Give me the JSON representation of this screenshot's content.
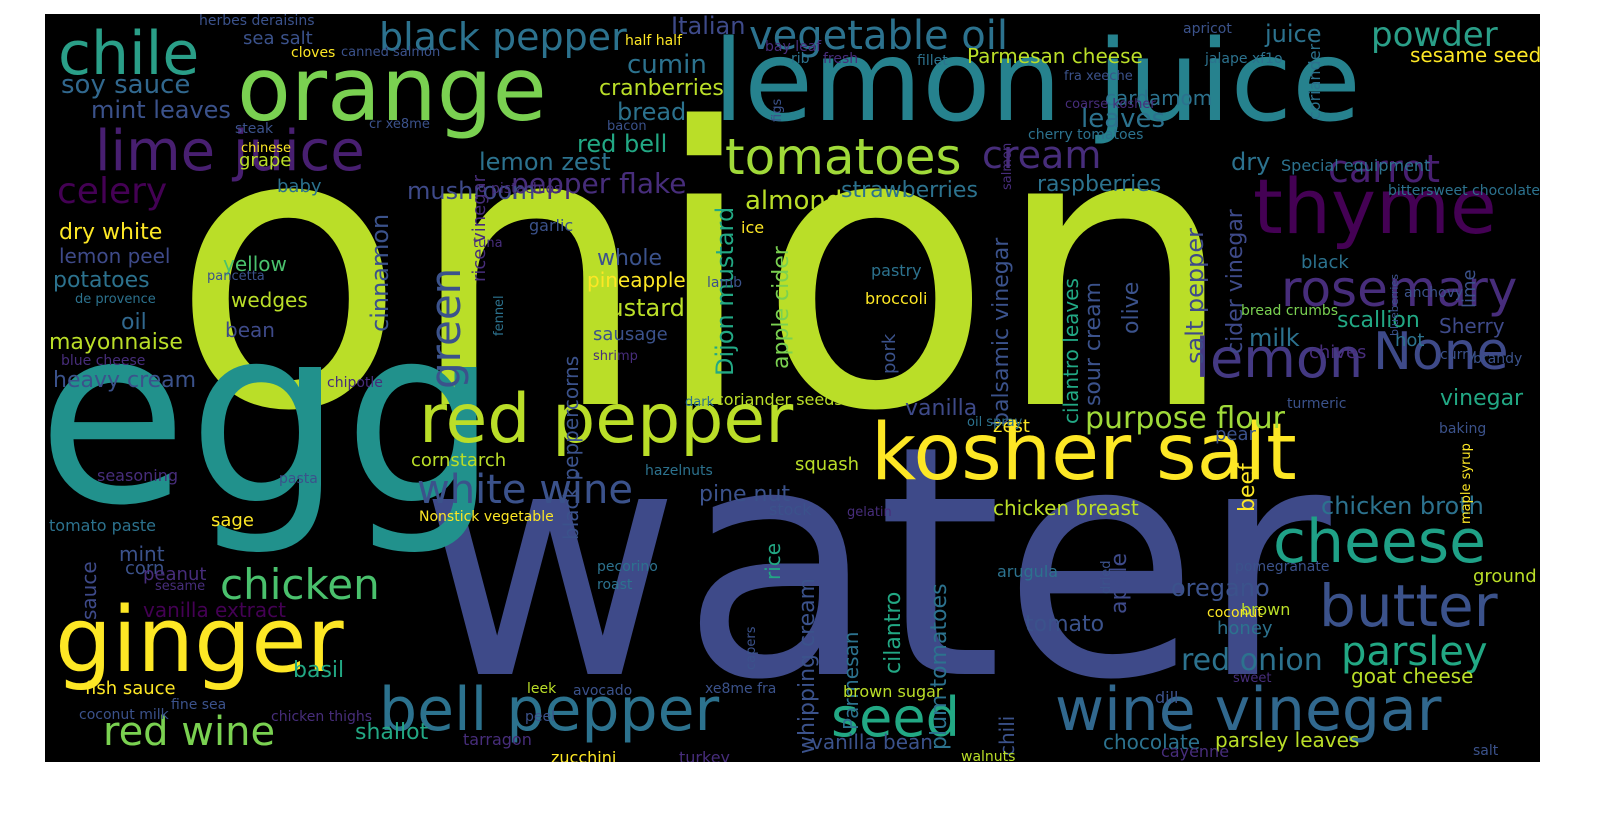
{
  "palette": {
    "background": "#000000",
    "colormap": "viridis",
    "lime": "#bade28",
    "yellow": "#fde725",
    "green": "#7ad151",
    "teal": "#22a884",
    "cyan": "#21918c",
    "blue": "#2c728e",
    "indigo": "#3b528b",
    "violet": "#472d7b",
    "purple": "#440154"
  },
  "words": [
    {
      "text": "onion",
      "color": "#bade28"
    },
    {
      "text": "water",
      "color": "#3e4a89"
    },
    {
      "text": "egg",
      "color": "#21918c"
    },
    {
      "text": "lemon juice",
      "color": "#26828e"
    },
    {
      "text": "orange",
      "color": "#7ad151"
    },
    {
      "text": "kosher salt",
      "color": "#fde725"
    },
    {
      "text": "ginger",
      "color": "#fde725"
    },
    {
      "text": "red pepper",
      "color": "#bade28"
    },
    {
      "text": "thyme",
      "color": "#440154"
    },
    {
      "text": "cheese",
      "color": "#1fa187"
    },
    {
      "text": "chile",
      "color": "#2a9f88"
    },
    {
      "text": "lime juice",
      "color": "#481f71"
    },
    {
      "text": "tomatoes",
      "color": "#a0da39"
    },
    {
      "text": "bell pepper",
      "color": "#2c728e"
    },
    {
      "text": "wine vinegar",
      "color": "#31688e"
    },
    {
      "text": "seed",
      "color": "#22a884"
    },
    {
      "text": "butter",
      "color": "#3b528b"
    },
    {
      "text": "lemon",
      "color": "#443983"
    },
    {
      "text": "None",
      "color": "#3e4a89"
    },
    {
      "text": "rosemary",
      "color": "#472d7b"
    },
    {
      "text": "chicken",
      "color": "#4ac16d"
    },
    {
      "text": "red wine",
      "color": "#7ad151"
    },
    {
      "text": "black pepper",
      "color": "#2c728e"
    },
    {
      "text": "vegetable oil",
      "color": "#2c728e"
    },
    {
      "text": "white wine",
      "color": "#3b528b"
    },
    {
      "text": "cream",
      "color": "#472d7b"
    },
    {
      "text": "carrot",
      "color": "#481f71"
    },
    {
      "text": "parsley",
      "color": "#22a884"
    },
    {
      "text": "celery",
      "color": "#440154"
    },
    {
      "text": "green",
      "color": "#3b528b"
    },
    {
      "text": "purpose flour",
      "color": "#a0da39"
    },
    {
      "text": "red onion",
      "color": "#2c728e"
    },
    {
      "text": "powder",
      "color": "#2a9f88"
    },
    {
      "text": "soy sauce",
      "color": "#31688e"
    },
    {
      "text": "mint leaves",
      "color": "#3b528b"
    },
    {
      "text": "cumin",
      "color": "#2c728e"
    },
    {
      "text": "Italian",
      "color": "#3e4a89"
    },
    {
      "text": "cranberries",
      "color": "#bade28"
    },
    {
      "text": "bread",
      "color": "#2c728e"
    },
    {
      "text": "red bell",
      "color": "#22a884"
    },
    {
      "text": "lemon zest",
      "color": "#2c728e"
    },
    {
      "text": "pepper flake",
      "color": "#472d7b"
    },
    {
      "text": "mushroom",
      "color": "#3e4a89"
    },
    {
      "text": "almond",
      "color": "#bade28"
    },
    {
      "text": "strawberries",
      "color": "#2c728e"
    },
    {
      "text": "raspberries",
      "color": "#2c728e"
    },
    {
      "text": "leaves",
      "color": "#2c728e"
    },
    {
      "text": "cardamom",
      "color": "#2c728e"
    },
    {
      "text": "dry",
      "color": "#2c728e"
    },
    {
      "text": "juice",
      "color": "#2c728e"
    },
    {
      "text": "sesame seed",
      "color": "#fde725"
    },
    {
      "text": "Parmesan cheese",
      "color": "#bade28"
    },
    {
      "text": "sea salt",
      "color": "#3b528b"
    },
    {
      "text": "dry white",
      "color": "#fde725"
    },
    {
      "text": "lemon peel",
      "color": "#3e4a89"
    },
    {
      "text": "potatoes",
      "color": "#2c728e"
    },
    {
      "text": "yellow",
      "color": "#4ac16d"
    },
    {
      "text": "wedges",
      "color": "#bade28"
    },
    {
      "text": "oil",
      "color": "#31688e"
    },
    {
      "text": "bean",
      "color": "#3e4a89"
    },
    {
      "text": "mayonnaise",
      "color": "#bade28"
    },
    {
      "text": "heavy cream",
      "color": "#3b528b"
    },
    {
      "text": "whole",
      "color": "#3b528b"
    },
    {
      "text": "pineapple",
      "color": "#fde725"
    },
    {
      "text": "mustard",
      "color": "#bade28"
    },
    {
      "text": "sausage",
      "color": "#3b528b"
    },
    {
      "text": "cinnamon",
      "color": "#3b528b"
    },
    {
      "text": "Dijon mustard",
      "color": "#22a884"
    },
    {
      "text": "apple cider",
      "color": "#7ad151"
    },
    {
      "text": "vanilla",
      "color": "#3e4a89"
    },
    {
      "text": "cornstarch",
      "color": "#bade28"
    },
    {
      "text": "pine nut",
      "color": "#3b528b"
    },
    {
      "text": "squash",
      "color": "#bade28"
    },
    {
      "text": "chicken breast",
      "color": "#bade28"
    },
    {
      "text": "stock",
      "color": "#3b528b"
    },
    {
      "text": "sage",
      "color": "#fde725"
    },
    {
      "text": "mint",
      "color": "#3b528b"
    },
    {
      "text": "corn",
      "color": "#3b528b"
    },
    {
      "text": "peanut",
      "color": "#472d7b"
    },
    {
      "text": "sauce",
      "color": "#3e4a89"
    },
    {
      "text": "vanilla extract",
      "color": "#440154"
    },
    {
      "text": "tomato paste",
      "color": "#2c728e"
    },
    {
      "text": "basil",
      "color": "#22a884"
    },
    {
      "text": "fish sauce",
      "color": "#fde725"
    },
    {
      "text": "shallot",
      "color": "#22a884"
    },
    {
      "text": "balsamic vinegar",
      "color": "#3b528b"
    },
    {
      "text": "cilantro leaves",
      "color": "#22a884"
    },
    {
      "text": "sour cream",
      "color": "#3b528b"
    },
    {
      "text": "olive",
      "color": "#3b528b"
    },
    {
      "text": "salt pepper",
      "color": "#3e4a89"
    },
    {
      "text": "cider vinegar",
      "color": "#3e4a89"
    },
    {
      "text": "milk",
      "color": "#2c728e"
    },
    {
      "text": "scallion",
      "color": "#22a884"
    },
    {
      "text": "Sherry",
      "color": "#3e4a89"
    },
    {
      "text": "chives",
      "color": "#472d7b"
    },
    {
      "text": "hot",
      "color": "#2c728e"
    },
    {
      "text": "vinegar",
      "color": "#22a884"
    },
    {
      "text": "zest",
      "color": "#fde725"
    },
    {
      "text": "pear",
      "color": "#3b528b"
    },
    {
      "text": "beef",
      "color": "#fde725"
    },
    {
      "text": "chicken broth",
      "color": "#2c728e"
    },
    {
      "text": "oregano",
      "color": "#3b528b"
    },
    {
      "text": "tomato",
      "color": "#3b528b"
    },
    {
      "text": "honey",
      "color": "#2c728e"
    },
    {
      "text": "goat cheese",
      "color": "#bade28"
    },
    {
      "text": "chocolate",
      "color": "#2c728e"
    },
    {
      "text": "parsley leaves",
      "color": "#bade28"
    },
    {
      "text": "apple",
      "color": "#3e4a89"
    },
    {
      "text": "whipping cream",
      "color": "#3b528b"
    },
    {
      "text": "Parmesan",
      "color": "#2c728e"
    },
    {
      "text": "rice",
      "color": "#22a884"
    },
    {
      "text": "cilantro",
      "color": "#22a884"
    },
    {
      "text": "plum tomatoes",
      "color": "#2c728e"
    },
    {
      "text": "chili",
      "color": "#3b528b"
    },
    {
      "text": "vanilla bean",
      "color": "#3b528b"
    },
    {
      "text": "brown sugar",
      "color": "#bade28"
    },
    {
      "text": "arugula",
      "color": "#2c728e"
    },
    {
      "text": "black peppercorns",
      "color": "#3b528b"
    },
    {
      "text": "rice vinegar",
      "color": "#472d7b"
    },
    {
      "text": "pork",
      "color": "#3b528b"
    },
    {
      "text": "coriander seeds",
      "color": "#bade28"
    },
    {
      "text": "black",
      "color": "#2c728e"
    },
    {
      "text": "lime",
      "color": "#3b528b"
    },
    {
      "text": "ground",
      "color": "#bade28"
    },
    {
      "text": "brown",
      "color": "#bade28"
    },
    {
      "text": "coriander",
      "color": "#2c728e"
    },
    {
      "text": "Special equipment",
      "color": "#2c728e"
    },
    {
      "text": "cherry tomatoes",
      "color": "#2c728e"
    },
    {
      "text": "baby",
      "color": "#2c728e"
    },
    {
      "text": "grape",
      "color": "#bade28"
    },
    {
      "text": "turkey",
      "color": "#472d7b"
    },
    {
      "text": "zucchini",
      "color": "#fde725"
    },
    {
      "text": "tarragon",
      "color": "#472d7b"
    },
    {
      "text": "leek",
      "color": "#bade28"
    },
    {
      "text": "avocado",
      "color": "#3b528b"
    },
    {
      "text": "dill",
      "color": "#3b528b"
    },
    {
      "text": "salt",
      "color": "#3b528b"
    },
    {
      "text": "walnuts",
      "color": "#bade28"
    },
    {
      "text": "cayenne",
      "color": "#472d7b"
    },
    {
      "text": "coconut",
      "color": "#fde725"
    },
    {
      "text": "pomegranate",
      "color": "#3b528b"
    },
    {
      "text": "curry",
      "color": "#3b528b"
    },
    {
      "text": "brandy",
      "color": "#3b528b"
    },
    {
      "text": "turmeric",
      "color": "#3b528b"
    },
    {
      "text": "baking",
      "color": "#3b528b"
    },
    {
      "text": "anchovy",
      "color": "#3b528b"
    },
    {
      "text": "bread crumbs",
      "color": "#7ad151"
    },
    {
      "text": "bittersweet chocolate",
      "color": "#2c728e"
    },
    {
      "text": "apricot",
      "color": "#3b528b"
    },
    {
      "text": "herbes deraisins",
      "color": "#3b528b"
    },
    {
      "text": "cloves",
      "color": "#fde725"
    },
    {
      "text": "canned salmon",
      "color": "#3b528b"
    },
    {
      "text": "half half",
      "color": "#fde725"
    },
    {
      "text": "bay leaf",
      "color": "#472d7b"
    },
    {
      "text": "rib",
      "color": "#2c728e"
    },
    {
      "text": "fresh",
      "color": "#472d7b"
    },
    {
      "text": "fillet",
      "color": "#2c728e"
    },
    {
      "text": "jalape xf1o",
      "color": "#2c728e"
    },
    {
      "text": "fra xeeche",
      "color": "#3b528b"
    },
    {
      "text": "coarse kosher",
      "color": "#472d7b"
    },
    {
      "text": "steak",
      "color": "#3b528b"
    },
    {
      "text": "cr xe8me",
      "color": "#3b528b"
    },
    {
      "text": "bacon",
      "color": "#3b528b"
    },
    {
      "text": "chinese",
      "color": "#fde725"
    },
    {
      "text": "garlic",
      "color": "#3b528b"
    },
    {
      "text": "ice",
      "color": "#fde725"
    },
    {
      "text": "lamb",
      "color": "#3b528b"
    },
    {
      "text": "pistachios",
      "color": "#472d7b"
    },
    {
      "text": "tuna",
      "color": "#472d7b"
    },
    {
      "text": "pastry",
      "color": "#2c728e"
    },
    {
      "text": "broccoli",
      "color": "#fde725"
    },
    {
      "text": "de provence",
      "color": "#2c728e"
    },
    {
      "text": "pancetta",
      "color": "#3b528b"
    },
    {
      "text": "blue cheese",
      "color": "#472d7b"
    },
    {
      "text": "shrimp",
      "color": "#472d7b"
    },
    {
      "text": "chipotle",
      "color": "#472d7b"
    },
    {
      "text": "fennel",
      "color": "#2c728e"
    },
    {
      "text": "seasoning",
      "color": "#472d7b"
    },
    {
      "text": "pasta",
      "color": "#3b528b"
    },
    {
      "text": "hazelnuts",
      "color": "#2c728e"
    },
    {
      "text": "Nonstick vegetable",
      "color": "#fde725"
    },
    {
      "text": "gelatin",
      "color": "#472d7b"
    },
    {
      "text": "maple syrup",
      "color": "#fde725"
    },
    {
      "text": "dark",
      "color": "#2c728e"
    },
    {
      "text": "oil spray",
      "color": "#2c728e"
    },
    {
      "text": "sesame",
      "color": "#472d7b"
    },
    {
      "text": "pecorino",
      "color": "#2c728e"
    },
    {
      "text": "roast",
      "color": "#2c728e"
    },
    {
      "text": "capers",
      "color": "#3b528b"
    },
    {
      "text": "dried",
      "color": "#3b528b"
    },
    {
      "text": "coconut milk",
      "color": "#3b528b"
    },
    {
      "text": "fine sea",
      "color": "#3b528b"
    },
    {
      "text": "chicken thighs",
      "color": "#472d7b"
    },
    {
      "text": "peel",
      "color": "#3b528b"
    },
    {
      "text": "xe8me fra",
      "color": "#3b528b"
    },
    {
      "text": "sweet",
      "color": "#472d7b"
    },
    {
      "text": "figs",
      "color": "#3b528b"
    },
    {
      "text": "salmon",
      "color": "#472d7b"
    },
    {
      "text": "blueberries",
      "color": "#3b528b"
    }
  ]
}
